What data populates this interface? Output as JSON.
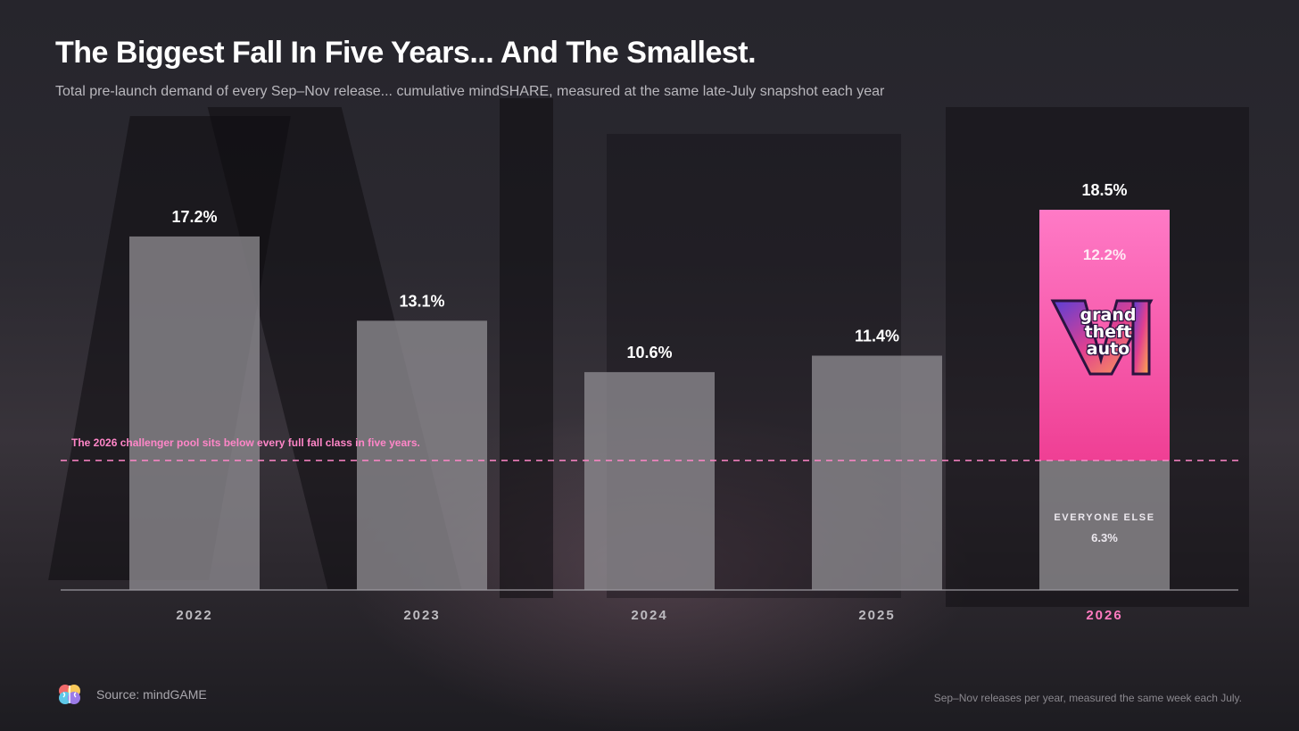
{
  "title": "The Biggest Fall In Five Years... And The Smallest.",
  "subtitle": "Total pre-launch demand of every Sep–Nov release... cumulative mindSHARE, measured at the same late-July snapshot each year",
  "colors": {
    "bar_gray": "#8d8b8f",
    "highlight_pink_top": "#ff7ac6",
    "highlight_pink_bottom": "#ef3f94",
    "highlight_label": "#ff7bc0",
    "reference_line": "#ff86c8",
    "axis_label": "#bdbbc0"
  },
  "chart_data": {
    "type": "bar",
    "categories": [
      "2022",
      "2023",
      "2024",
      "2025",
      "2026"
    ],
    "values": [
      17.2,
      13.1,
      10.6,
      11.4,
      18.5
    ],
    "value_labels": [
      "17.2%",
      "13.1%",
      "10.6%",
      "11.4%",
      "18.5%"
    ],
    "ylim": [
      0,
      19.5
    ],
    "grid": false,
    "highlight": {
      "category": "2026",
      "segments": [
        {
          "name": "EVERYONE ELSE",
          "value": 6.3,
          "label": "6.3%"
        },
        {
          "name": "",
          "value": 12.2,
          "label": "12.2%"
        }
      ],
      "logo_lines": [
        "grand",
        "theft",
        "auto"
      ],
      "logo_numeral": "VI"
    },
    "reference_line": {
      "value": 6.3,
      "style": "dashed",
      "annotation": "The 2026 challenger pool sits below every full fall class in five years."
    }
  },
  "footer": {
    "source": "Source: mindGAME",
    "note": "Sep–Nov releases per year, measured the same week each July."
  }
}
